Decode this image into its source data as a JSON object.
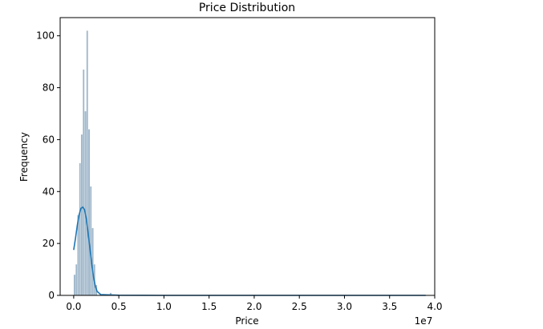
{
  "chart_data": {
    "type": "bar",
    "title": "Price Distribution",
    "xlabel": "Price",
    "ylabel": "Frequency",
    "x_offset_label": "1e7",
    "xlim": [
      -0.15,
      4.0
    ],
    "ylim": [
      0,
      107
    ],
    "xticks": [
      0.0,
      0.5,
      1.0,
      1.5,
      2.0,
      2.5,
      3.0,
      3.5,
      4.0
    ],
    "xtick_labels": [
      "0.0",
      "0.5",
      "1.0",
      "1.5",
      "2.0",
      "2.5",
      "3.0",
      "3.5",
      "4.0"
    ],
    "yticks": [
      0,
      20,
      40,
      60,
      80,
      100
    ],
    "ytick_labels": [
      "0",
      "20",
      "40",
      "60",
      "80",
      "100"
    ],
    "grid": false,
    "colors": {
      "bar": "#7f9fb8",
      "kde": "#1f77b4"
    },
    "histogram": [
      {
        "x": 0.0,
        "count": 8
      },
      {
        "x": 0.02,
        "count": 12
      },
      {
        "x": 0.04,
        "count": 31
      },
      {
        "x": 0.06,
        "count": 51
      },
      {
        "x": 0.08,
        "count": 62
      },
      {
        "x": 0.1,
        "count": 87
      },
      {
        "x": 0.12,
        "count": 71
      },
      {
        "x": 0.14,
        "count": 102
      },
      {
        "x": 0.16,
        "count": 64
      },
      {
        "x": 0.18,
        "count": 42
      },
      {
        "x": 0.2,
        "count": 26
      },
      {
        "x": 0.22,
        "count": 12
      },
      {
        "x": 0.24,
        "count": 4
      },
      {
        "x": 0.4,
        "count": 1
      }
    ],
    "kde": {
      "x": [
        0.0,
        0.02,
        0.04,
        0.06,
        0.08,
        0.1,
        0.12,
        0.14,
        0.16,
        0.18,
        0.2,
        0.22,
        0.24,
        0.26,
        0.3,
        0.5,
        1.0,
        2.0,
        3.0,
        3.9
      ],
      "y": [
        17.5,
        22,
        27,
        31,
        33.5,
        34,
        33,
        29.5,
        24,
        18,
        12,
        7,
        3.5,
        1.5,
        0.3,
        0.05,
        0,
        0,
        0,
        0
      ]
    }
  }
}
